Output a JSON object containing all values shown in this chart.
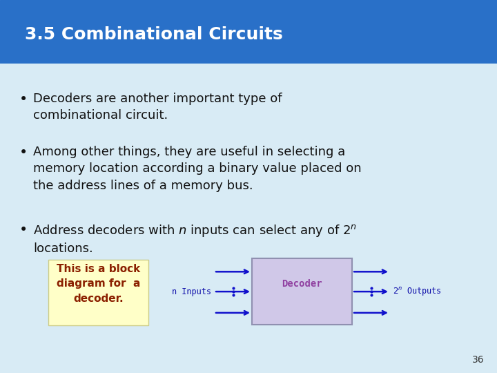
{
  "title": "3.5 Combinational Circuits",
  "title_color": "#FFFFFF",
  "title_bg_color": "#2970C8",
  "title_fontsize": 18,
  "body_bg_color": "#D8EBF5",
  "bullet_color": "#111111",
  "bullet_fontsize": 13,
  "bullets": [
    "Decoders are another important type of\ncombinational circuit.",
    "Among other things, they are useful in selecting a\nmemory location according a binary value placed on\nthe address lines of a memory bus.",
    "Address decoders with $n$ inputs can select any of $2^{n}$\nlocations."
  ],
  "note_text": "This is a block\ndiagram for  a\ndecoder.",
  "note_text_color": "#8B2000",
  "note_bg_color": "#FFFFC8",
  "note_fontsize": 11,
  "decoder_box_color": "#D0C8E8",
  "decoder_box_edge_color": "#9090B0",
  "decoder_label_color": "#9040A0",
  "decoder_label_fontsize": 10,
  "arrow_color": "#1010CC",
  "diagram_label_color": "#1010AA",
  "diagram_label_fontsize": 8.5,
  "page_number": "36",
  "page_number_color": "#333333",
  "page_number_fontsize": 10
}
